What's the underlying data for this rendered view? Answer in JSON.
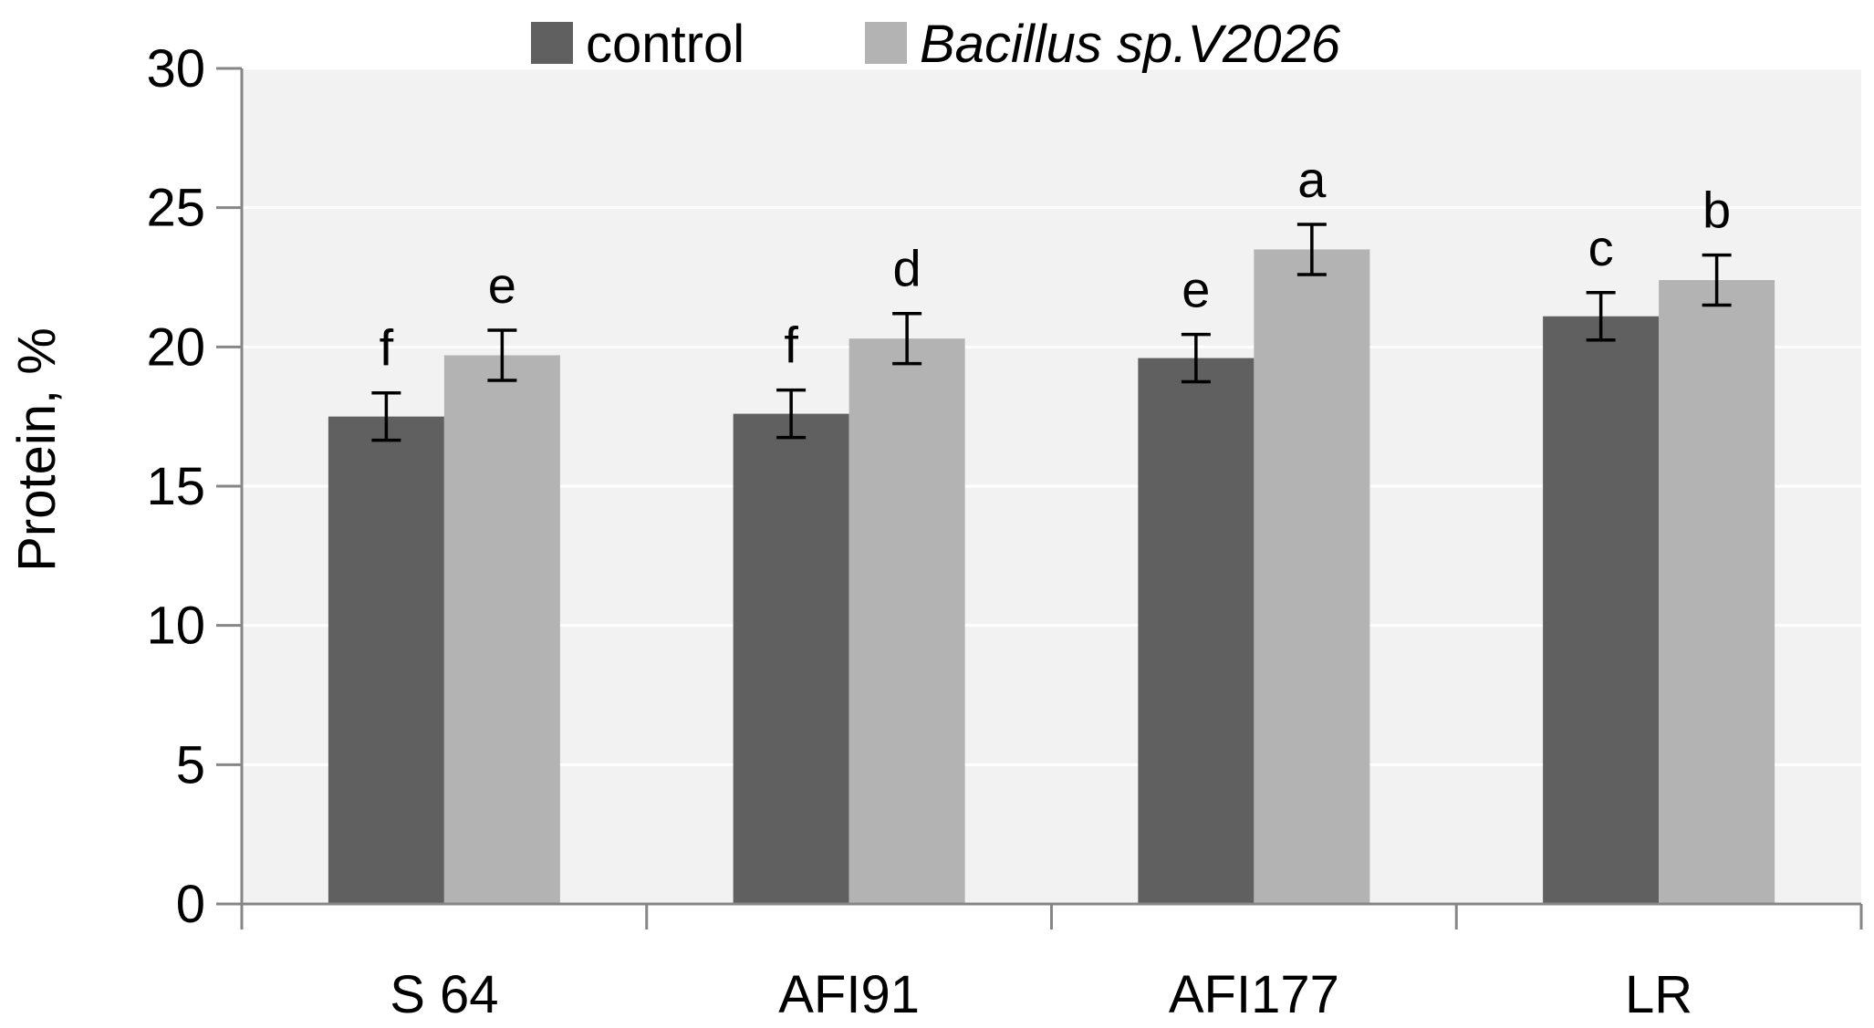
{
  "chart_data": {
    "type": "bar",
    "title": "",
    "xlabel": "",
    "ylabel": "Protein, %",
    "ylim": [
      0,
      30
    ],
    "yticks": [
      0,
      5,
      10,
      15,
      20,
      25,
      30
    ],
    "ytick_labels": [
      "0",
      "5",
      "10",
      "15",
      "20",
      "25",
      "30"
    ],
    "grid": true,
    "legend_position": "top",
    "categories": [
      "S 64",
      "AFI91",
      "AFI177",
      "LR"
    ],
    "series": [
      {
        "name": "control",
        "color": "#606060",
        "italic": false,
        "values": [
          17.5,
          17.6,
          19.6,
          21.1
        ],
        "errors": [
          0.85,
          0.85,
          0.85,
          0.85
        ],
        "labels": [
          "f",
          "f",
          "e",
          "c"
        ]
      },
      {
        "name": "Bacillus sp.V2026",
        "color": "#b3b3b3",
        "italic": true,
        "values": [
          19.7,
          20.3,
          23.5,
          22.4
        ],
        "errors": [
          0.9,
          0.9,
          0.9,
          0.9
        ],
        "labels": [
          "e",
          "d",
          "a",
          "b"
        ]
      }
    ],
    "plot_background": "#f2f2f2",
    "gridline_color": "#ffffff",
    "axis_color": "#868686"
  }
}
